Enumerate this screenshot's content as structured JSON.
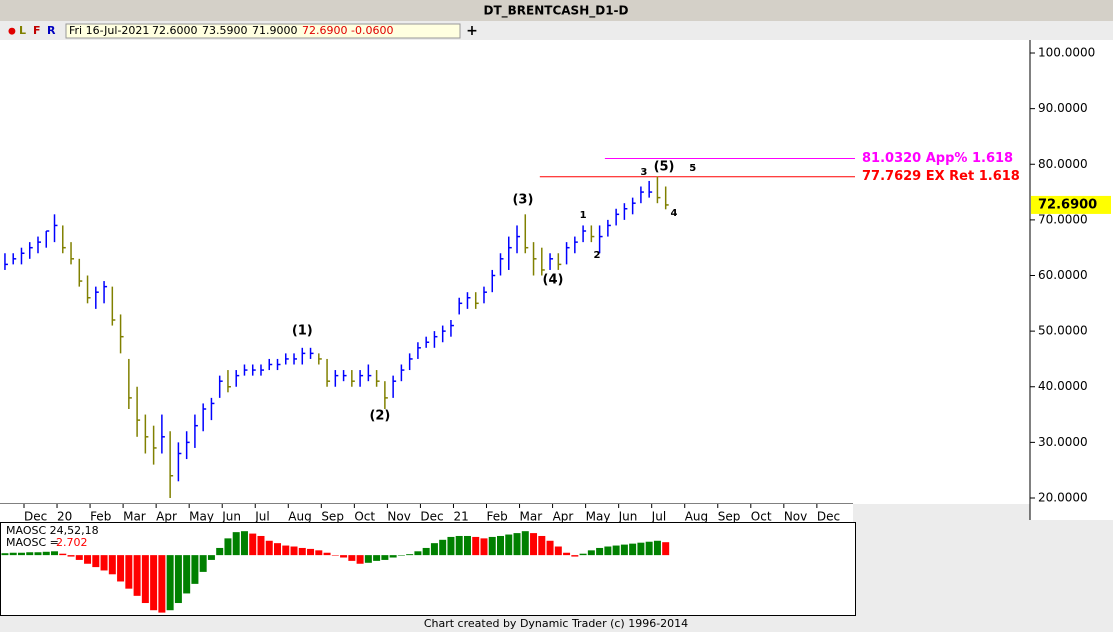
{
  "header": {
    "title": "DT_BRENTCASH_D1-D",
    "dot": "●",
    "letters": [
      "L",
      "F",
      "R"
    ],
    "quote": [
      "Fri 16-Jul-2021",
      "72.6000",
      "73.5900",
      "71.9000",
      "72.6900",
      "-0.0600"
    ],
    "plus": "+"
  },
  "chart_data": [
    {
      "type": "ohlc",
      "x": [
        -1.0,
        -0.75,
        -0.5,
        -0.25,
        0,
        0.25,
        0.5,
        0.75,
        1,
        1.25,
        1.5,
        1.75,
        2,
        2.25,
        2.5,
        2.75,
        3,
        3.25,
        3.5,
        3.75,
        4,
        4.25,
        4.5,
        4.75,
        5,
        5.25,
        5.5,
        5.75,
        6,
        6.25,
        6.5,
        6.75,
        7,
        7.25,
        7.5,
        7.75,
        8,
        8.25,
        8.5,
        8.75,
        9,
        9.25,
        9.5,
        9.75,
        10,
        10.25,
        10.5,
        10.75,
        11,
        11.25,
        11.5,
        11.75,
        12,
        12.25,
        12.5,
        12.75,
        13,
        13.25,
        13.5,
        13.75,
        14,
        14.25,
        14.5,
        14.75,
        15,
        15.25,
        15.5,
        15.75,
        16,
        16.25,
        16.5,
        16.75,
        17,
        17.25,
        17.5,
        17.75,
        18,
        18.25,
        18.5,
        18.75,
        19
      ],
      "high": [
        64,
        64,
        65,
        66,
        67,
        68,
        71,
        69,
        66,
        63,
        60,
        58,
        59,
        58,
        53,
        45,
        40,
        35,
        33,
        35,
        32,
        30,
        32,
        35,
        37,
        38,
        42,
        43,
        43,
        44,
        44,
        44,
        45,
        45,
        46,
        46,
        47,
        47,
        46,
        45,
        43,
        43,
        43,
        43,
        44,
        43,
        41,
        42,
        44,
        46,
        48,
        49,
        50,
        51,
        52,
        56,
        57,
        57,
        58,
        61,
        64,
        67,
        69,
        71,
        66,
        65,
        64,
        64,
        66,
        67,
        69,
        69,
        69,
        70,
        72,
        73,
        74,
        76,
        77,
        77.8,
        76
      ],
      "low": [
        61,
        62,
        62,
        63,
        64,
        65,
        66,
        64,
        62,
        58,
        55,
        54,
        55,
        51,
        46,
        36,
        31,
        28,
        26,
        28,
        20,
        23,
        27,
        29,
        32,
        34,
        38,
        39,
        40,
        42,
        42,
        42,
        43,
        43,
        44,
        44,
        44,
        45,
        44,
        40,
        40,
        41,
        40,
        40,
        41,
        40,
        36,
        38,
        41,
        43,
        45,
        47,
        47,
        48,
        49,
        53,
        54,
        54,
        55,
        57,
        60,
        61,
        64,
        64,
        60,
        60,
        61,
        61,
        62,
        64,
        66,
        66,
        64,
        67,
        69,
        70,
        71,
        73,
        74,
        73,
        71.9
      ],
      "close": [
        62,
        63,
        64,
        65,
        66,
        68,
        69,
        65,
        63,
        59,
        56,
        57,
        58,
        52,
        49,
        38,
        34,
        31,
        29,
        31,
        24,
        28,
        30,
        33,
        36,
        37,
        41,
        40,
        42,
        43,
        43,
        43,
        44,
        44,
        45,
        45,
        46,
        46,
        45,
        41,
        42,
        42,
        41,
        42,
        42,
        41,
        38,
        41,
        43,
        45,
        47,
        48,
        49,
        50,
        51,
        55,
        56,
        55,
        57,
        60,
        63,
        65,
        67,
        65,
        63,
        61,
        63,
        62,
        65,
        66,
        68,
        67,
        67,
        69,
        71,
        72,
        73,
        75,
        75,
        74,
        72.69
      ],
      "up_color": "#0000ff",
      "down_color": "#808000",
      "xlim": [
        -1.15,
        24.67
      ],
      "ylim": [
        18.92,
        102.34
      ],
      "xticks": [
        {
          "value": 0,
          "label": "Dec"
        },
        {
          "value": 1,
          "label": "20"
        },
        {
          "value": 2,
          "label": "Feb"
        },
        {
          "value": 3,
          "label": "Mar"
        },
        {
          "value": 4,
          "label": "Apr"
        },
        {
          "value": 5,
          "label": "May"
        },
        {
          "value": 6,
          "label": "Jun"
        },
        {
          "value": 7,
          "label": "Jul"
        },
        {
          "value": 8,
          "label": "Aug"
        },
        {
          "value": 9,
          "label": "Sep"
        },
        {
          "value": 10,
          "label": "Oct"
        },
        {
          "value": 11,
          "label": "Nov"
        },
        {
          "value": 12,
          "label": "Dec"
        },
        {
          "value": 13,
          "label": "21"
        },
        {
          "value": 14,
          "label": "Feb"
        },
        {
          "value": 15,
          "label": "Mar"
        },
        {
          "value": 16,
          "label": "Apr"
        },
        {
          "value": 17,
          "label": "May"
        },
        {
          "value": 18,
          "label": "Jun"
        },
        {
          "value": 19,
          "label": "Jul"
        },
        {
          "value": 20,
          "label": "Aug"
        },
        {
          "value": 21,
          "label": "Sep"
        },
        {
          "value": 22,
          "label": "Oct"
        },
        {
          "value": 23,
          "label": "Nov"
        },
        {
          "value": 24,
          "label": "Dec"
        }
      ],
      "yticks": [
        {
          "value": 20,
          "label": "20.0000"
        },
        {
          "value": 30,
          "label": "30.0000"
        },
        {
          "value": 40,
          "label": "40.0000"
        },
        {
          "value": 50,
          "label": "50.0000"
        },
        {
          "value": 60,
          "label": "60.0000"
        },
        {
          "value": 70,
          "label": "70.0000"
        },
        {
          "value": 80,
          "label": "80.0000"
        },
        {
          "value": 90,
          "label": "90.0000"
        },
        {
          "value": 100,
          "label": "100.0000"
        }
      ],
      "last_price": {
        "value": 72.69,
        "label": "72.6900",
        "color": "#ffff00"
      },
      "levels": [
        {
          "value": 81.032,
          "label": "81.0320 App% 1.618",
          "start": 17.16,
          "color": "#ff00ff"
        },
        {
          "value": 77.7629,
          "label": "77.7629 EX Ret 1.618",
          "start": 15.19,
          "color": "#ff0000"
        }
      ],
      "annotations": [
        {
          "text": "(1)",
          "x": 8.0,
          "y": 50,
          "size": "large"
        },
        {
          "text": "(2)",
          "x": 10.35,
          "y": 34.7,
          "size": "large"
        },
        {
          "text": "(3)",
          "x": 14.68,
          "y": 73.6,
          "size": "large"
        },
        {
          "text": "(4)",
          "x": 15.59,
          "y": 59.2,
          "size": "large"
        },
        {
          "text": "(5)",
          "x": 18.95,
          "y": 79.5,
          "size": "large"
        },
        {
          "text": "1",
          "x": 16.5,
          "y": 70.9,
          "size": "small"
        },
        {
          "text": "2",
          "x": 16.92,
          "y": 63.7,
          "size": "small"
        },
        {
          "text": "3",
          "x": 18.34,
          "y": 78.6,
          "size": "small"
        },
        {
          "text": "4",
          "x": 19.25,
          "y": 71.2,
          "size": "small"
        },
        {
          "text": "5",
          "x": 19.82,
          "y": 79.3,
          "size": "small"
        }
      ]
    },
    {
      "type": "bar",
      "title": "MAOSC 24,52,18",
      "value_title": "MAOSC =",
      "x": [
        -1.0,
        -0.75,
        -0.5,
        -0.25,
        0,
        0.25,
        0.5,
        0.75,
        1,
        1.25,
        1.5,
        1.75,
        2,
        2.25,
        2.5,
        2.75,
        3,
        3.25,
        3.5,
        3.75,
        4,
        4.25,
        4.5,
        4.75,
        5,
        5.25,
        5.5,
        5.75,
        6,
        6.25,
        6.5,
        6.75,
        7,
        7.25,
        7.5,
        7.75,
        8,
        8.25,
        8.5,
        8.75,
        9,
        9.25,
        9.5,
        9.75,
        10,
        10.25,
        10.5,
        10.75,
        11,
        11.25,
        11.5,
        11.75,
        12,
        12.25,
        12.5,
        12.75,
        13,
        13.25,
        13.5,
        13.75,
        14,
        14.25,
        14.5,
        14.75,
        15,
        15.25,
        15.5,
        15.75,
        16,
        16.25,
        16.5,
        16.75,
        17,
        17.25,
        17.5,
        17.75,
        18,
        18.25,
        18.5,
        18.75,
        19
      ],
      "values": [
        0.4,
        0.5,
        0.5,
        0.6,
        0.6,
        0.7,
        0.8,
        0.3,
        -0.3,
        -1,
        -1.8,
        -2.5,
        -3.2,
        -4,
        -5.5,
        -7,
        -8.5,
        -10,
        -11.5,
        -12,
        -11.5,
        -10,
        -8,
        -6,
        -3.5,
        -1,
        1.5,
        3.5,
        4.8,
        5,
        4.5,
        4,
        3,
        2.5,
        2,
        1.8,
        1.5,
        1.3,
        1,
        0.5,
        0,
        -0.5,
        -1.2,
        -1.8,
        -1.6,
        -1.2,
        -1,
        -0.5,
        0,
        0.2,
        0.8,
        1.5,
        2.5,
        3.2,
        3.8,
        4,
        4,
        3.8,
        3.5,
        3.8,
        4,
        4.3,
        4.6,
        5,
        4.6,
        4,
        3,
        1.8,
        0.5,
        -0.3,
        0.3,
        1,
        1.5,
        1.8,
        2,
        2.2,
        2.4,
        2.6,
        2.8,
        3,
        2.702
      ],
      "up_color": "#008000",
      "down_color": "#ff0000",
      "value_color": "#ff0000",
      "xlim": [
        -1.15,
        24.67
      ],
      "ylim": [
        -12.5,
        6.5
      ]
    }
  ],
  "footer": "Chart created by Dynamic Trader  (c) 1996-2014"
}
